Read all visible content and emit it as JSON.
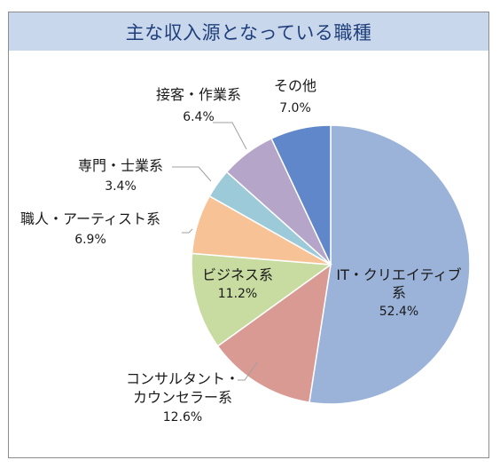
{
  "chart_data": {
    "type": "pie",
    "title": "主な収入源となっている職種",
    "slices": [
      {
        "name": "IT・クリエイティブ系",
        "value": 52.4,
        "pct_label": "52.4%",
        "color": "#9bb3d8",
        "label_lines": [
          "IT・クリエイティブ",
          "系"
        ]
      },
      {
        "name": "コンサルタント・カウンセラー系",
        "value": 12.6,
        "pct_label": "12.6%",
        "color": "#d99a94",
        "label_lines": [
          "コンサルタント・",
          "カウンセラー系"
        ]
      },
      {
        "name": "ビジネス系",
        "value": 11.2,
        "pct_label": "11.2%",
        "color": "#c8dba0",
        "label_lines": [
          "ビジネス系"
        ]
      },
      {
        "name": "職人・アーティスト系",
        "value": 6.9,
        "pct_label": "6.9%",
        "color": "#f7c396",
        "label_lines": [
          "職人・アーティスト系"
        ]
      },
      {
        "name": "専門・士業系",
        "value": 3.4,
        "pct_label": "3.4%",
        "color": "#9ccad8",
        "label_lines": [
          "専門・士業系"
        ]
      },
      {
        "name": "接客・作業系",
        "value": 6.4,
        "pct_label": "6.4%",
        "color": "#b5a5c9",
        "label_lines": [
          "接客・作業系"
        ]
      },
      {
        "name": "その他",
        "value": 7.0,
        "pct_label": "7.0%",
        "color": "#5f87c9",
        "label_lines": [
          "その他"
        ]
      }
    ]
  }
}
